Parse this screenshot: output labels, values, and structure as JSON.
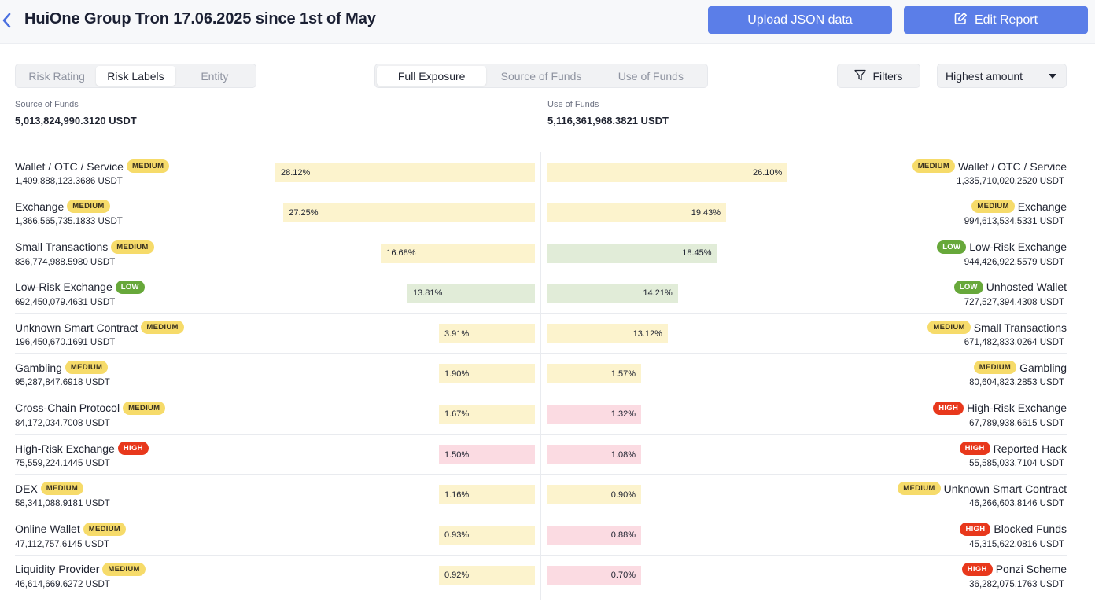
{
  "header": {
    "title": "HuiOne Group Tron 17.06.2025 since 1st of May",
    "upload_label": "Upload JSON data",
    "edit_label": "Edit Report"
  },
  "view_tabs": [
    "Risk Rating",
    "Risk Labels",
    "Entity"
  ],
  "view_tabs_active": 1,
  "flow_tabs": [
    "Full Exposure",
    "Source of Funds",
    "Use of Funds"
  ],
  "flow_tabs_active": 0,
  "filters_label": "Filters",
  "sort": {
    "selected": "Highest amount"
  },
  "colors": {
    "accent": "#5b7ee8",
    "medium": "#f6db6a",
    "low": "#67a83a",
    "high": "#e8381c"
  },
  "source": {
    "label": "Source of Funds",
    "total": "5,013,824,990.3120 USDT",
    "items": [
      {
        "name": "Wallet / OTC / Service",
        "risk": "MEDIUM",
        "amount": "1,409,888,123.3686 USDT",
        "percent": "28.12%"
      },
      {
        "name": "Exchange",
        "risk": "MEDIUM",
        "amount": "1,366,565,735.1833 USDT",
        "percent": "27.25%"
      },
      {
        "name": "Small Transactions",
        "risk": "MEDIUM",
        "amount": "836,774,988.5980 USDT",
        "percent": "16.68%"
      },
      {
        "name": "Low-Risk Exchange",
        "risk": "LOW",
        "amount": "692,450,079.4631 USDT",
        "percent": "13.81%"
      },
      {
        "name": "Unknown Smart Contract",
        "risk": "MEDIUM",
        "amount": "196,450,670.1691 USDT",
        "percent": "3.91%"
      },
      {
        "name": "Gambling",
        "risk": "MEDIUM",
        "amount": "95,287,847.6918 USDT",
        "percent": "1.90%"
      },
      {
        "name": "Cross-Chain Protocol",
        "risk": "MEDIUM",
        "amount": "84,172,034.7008 USDT",
        "percent": "1.67%"
      },
      {
        "name": "High-Risk Exchange",
        "risk": "HIGH",
        "amount": "75,559,224.1445 USDT",
        "percent": "1.50%"
      },
      {
        "name": "DEX",
        "risk": "MEDIUM",
        "amount": "58,341,088.9181 USDT",
        "percent": "1.16%"
      },
      {
        "name": "Online Wallet",
        "risk": "MEDIUM",
        "amount": "47,112,757.6145 USDT",
        "percent": "0.93%"
      },
      {
        "name": "Liquidity Provider",
        "risk": "MEDIUM",
        "amount": "46,614,669.6272 USDT",
        "percent": "0.92%"
      }
    ]
  },
  "use": {
    "label": "Use of Funds",
    "total": "5,116,361,968.3821 USDT",
    "items": [
      {
        "name": "Wallet / OTC / Service",
        "risk": "MEDIUM",
        "amount": "1,335,710,020.2520 USDT",
        "percent": "26.10%"
      },
      {
        "name": "Exchange",
        "risk": "MEDIUM",
        "amount": "994,613,534.5331 USDT",
        "percent": "19.43%"
      },
      {
        "name": "Low-Risk Exchange",
        "risk": "LOW",
        "amount": "944,426,922.5579 USDT",
        "percent": "18.45%"
      },
      {
        "name": "Unhosted Wallet",
        "risk": "LOW",
        "amount": "727,527,394.4308 USDT",
        "percent": "14.21%"
      },
      {
        "name": "Small Transactions",
        "risk": "MEDIUM",
        "amount": "671,482,833.0264 USDT",
        "percent": "13.12%"
      },
      {
        "name": "Gambling",
        "risk": "MEDIUM",
        "amount": "80,604,823.2853 USDT",
        "percent": "1.57%"
      },
      {
        "name": "High-Risk Exchange",
        "risk": "HIGH",
        "amount": "67,789,938.6615 USDT",
        "percent": "1.32%"
      },
      {
        "name": "Reported Hack",
        "risk": "HIGH",
        "amount": "55,585,033.7104 USDT",
        "percent": "1.08%"
      },
      {
        "name": "Unknown Smart Contract",
        "risk": "MEDIUM",
        "amount": "46,266,603.8146 USDT",
        "percent": "0.90%"
      },
      {
        "name": "Blocked Funds",
        "risk": "HIGH",
        "amount": "45,315,622.0816 USDT",
        "percent": "0.88%"
      },
      {
        "name": "Ponzi Scheme",
        "risk": "HIGH",
        "amount": "36,282,075.1763 USDT",
        "percent": "0.70%"
      }
    ]
  }
}
